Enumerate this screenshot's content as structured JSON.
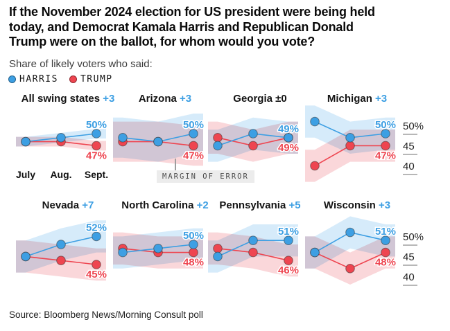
{
  "header": {
    "title_lines": [
      "If the November 2024 election for US president were being held",
      "today, and Democrat Kamala Harris and Republican Donald",
      "Trump were on the ballot, for whom would you vote?"
    ],
    "subtitle": "Share of likely voters who said:"
  },
  "legend": {
    "harris": "HARRIS",
    "trump": "TRUMP"
  },
  "annotations": {
    "margin_of_error": "MARGIN OF ERROR"
  },
  "source": "Source: Bloomberg News/Morning Consult poll",
  "colors": {
    "harris": "#3d9fe3",
    "trump": "#ee4550",
    "harris_band": "#cfe7f9",
    "trump_band": "#f9d0d4",
    "neutral_text": "#141414",
    "tick_dash": "#b7b7b7"
  },
  "chart_data": {
    "type": "line",
    "x": [
      "July",
      "Aug.",
      "Sept."
    ],
    "series_names": [
      "HARRIS",
      "TRUMP"
    ],
    "ylim": [
      38,
      57
    ],
    "grid": false,
    "legend_position": "top-left",
    "yticks": [
      {
        "label": "50%",
        "value": 50
      },
      {
        "label": "45",
        "value": 45
      },
      {
        "label": "40",
        "value": 40
      }
    ],
    "panels": [
      {
        "name": "All swing states",
        "margin": "+3",
        "margin_style": "harris",
        "harris": [
          48,
          49,
          50
        ],
        "trump": [
          48,
          48,
          47
        ],
        "harris_end_label": "50%",
        "trump_end_label": "47%",
        "moe": 1.2
      },
      {
        "name": "Arizona",
        "margin": "+3",
        "margin_style": "harris",
        "harris": [
          49,
          48,
          50
        ],
        "trump": [
          48,
          48,
          47
        ],
        "harris_end_label": "50%",
        "trump_end_label": "47%",
        "moe": 5
      },
      {
        "name": "Georgia",
        "margin": "±0",
        "margin_style": "neutral",
        "harris": [
          47,
          50,
          49
        ],
        "trump": [
          49,
          47,
          49
        ],
        "harris_end_label": "49%",
        "trump_end_label": "49%",
        "moe": 4
      },
      {
        "name": "Michigan",
        "margin": "+3",
        "margin_style": "harris",
        "harris": [
          53,
          49,
          50
        ],
        "trump": [
          42,
          47,
          47
        ],
        "harris_end_label": "50%",
        "trump_end_label": "47%",
        "moe": 4
      },
      {
        "name": "Nevada",
        "margin": "+7",
        "margin_style": "harris",
        "harris": [
          47,
          50,
          52
        ],
        "trump": [
          47,
          46,
          45
        ],
        "harris_end_label": "52%",
        "trump_end_label": "45%",
        "moe": 4
      },
      {
        "name": "North Carolina",
        "margin": "+2",
        "margin_style": "harris",
        "harris": [
          48,
          49,
          50
        ],
        "trump": [
          49,
          48,
          48
        ],
        "harris_end_label": "50%",
        "trump_end_label": "48%",
        "moe": 4
      },
      {
        "name": "Pennsylvania",
        "margin": "+5",
        "margin_style": "harris",
        "harris": [
          47,
          51,
          51
        ],
        "trump": [
          49,
          48,
          46
        ],
        "harris_end_label": "51%",
        "trump_end_label": "46%",
        "moe": 4
      },
      {
        "name": "Wisconsin",
        "margin": "+3",
        "margin_style": "harris",
        "harris": [
          48,
          53,
          51
        ],
        "trump": [
          48,
          44,
          48
        ],
        "harris_end_label": "51%",
        "trump_end_label": "48%",
        "moe": 4
      }
    ]
  }
}
